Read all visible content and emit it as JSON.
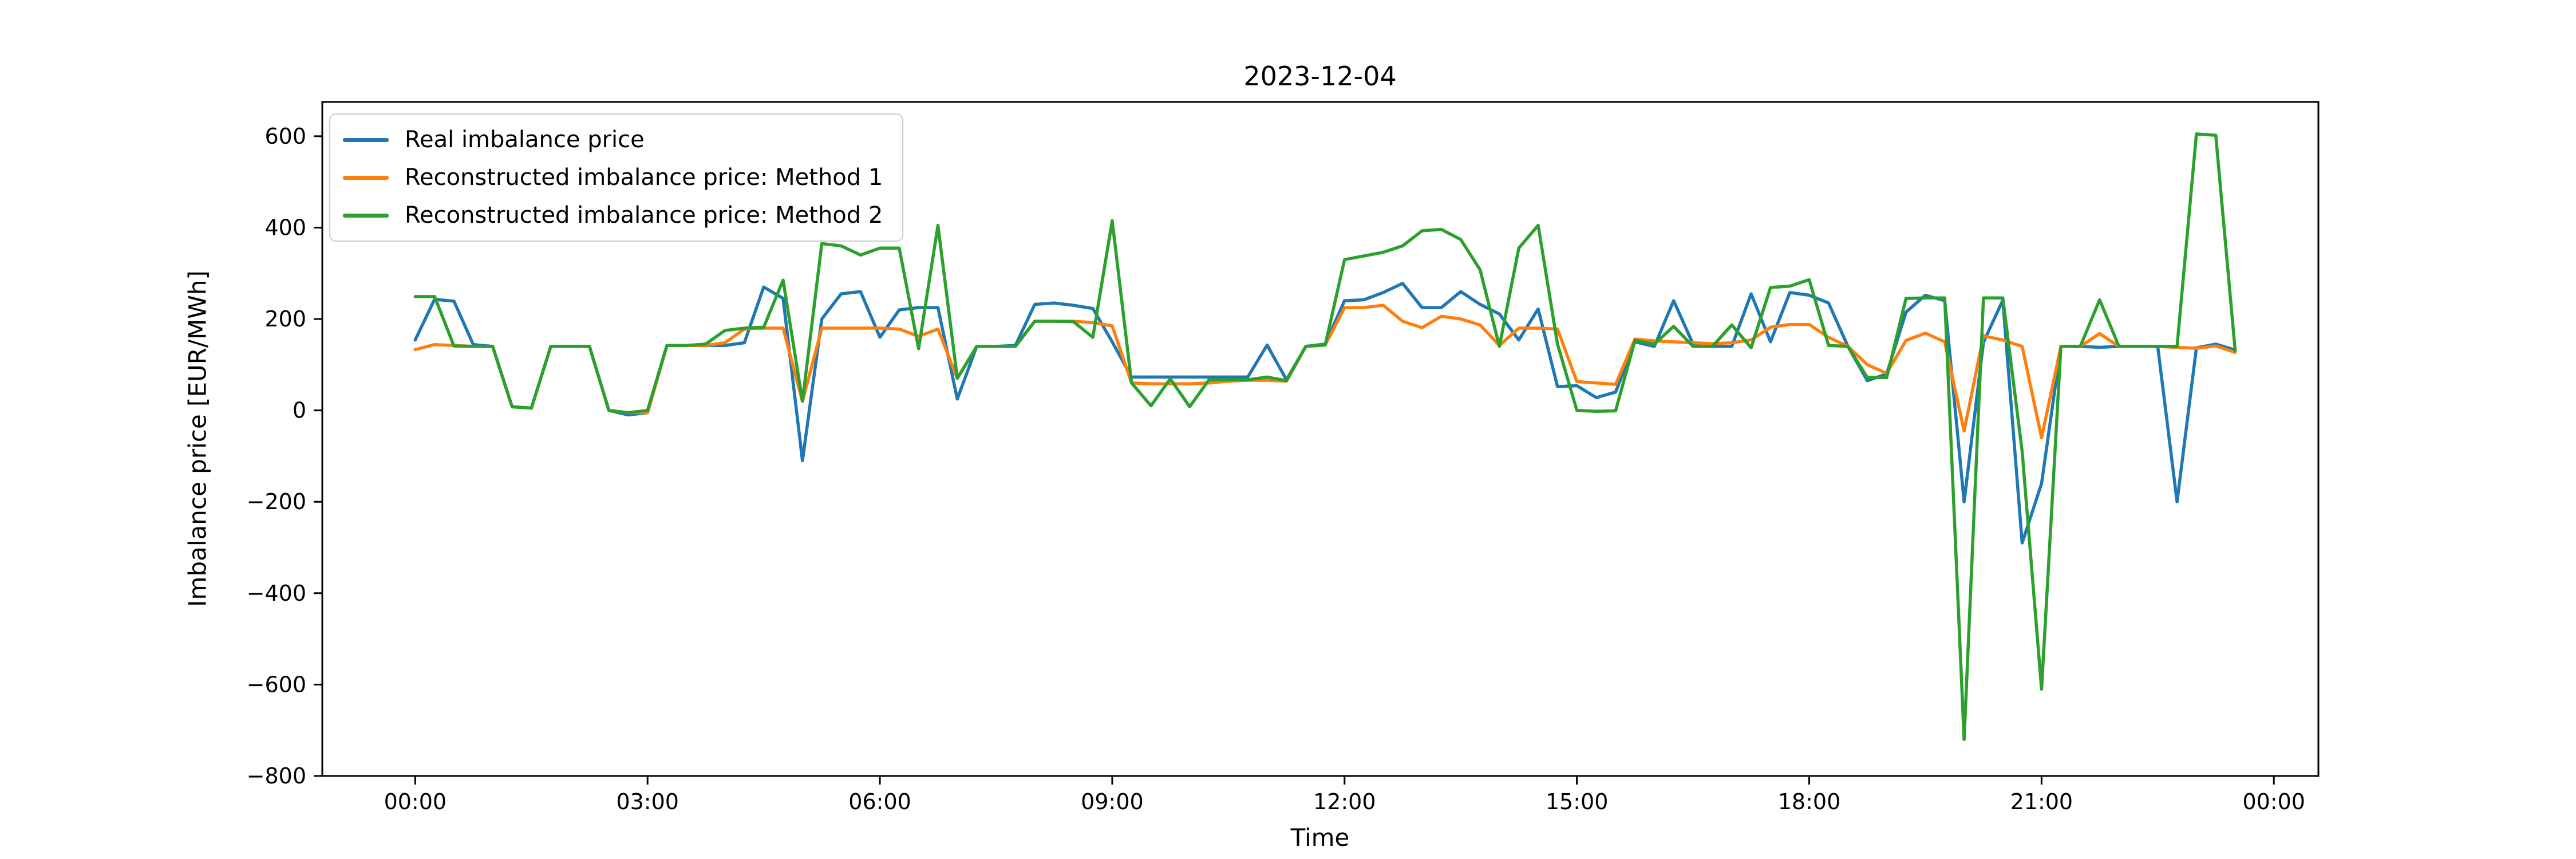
{
  "figure": {
    "title": "2023-12-04",
    "xlabel": "Time",
    "ylabel": "Imbalance price [EUR/MWh]",
    "background_color": "#ffffff",
    "spine_color": "#000000"
  },
  "legend": {
    "position": "upper left",
    "items": [
      {
        "label": "Real imbalance price",
        "color": "#1f77b4"
      },
      {
        "label": "Reconstructed imbalance price: Method 1",
        "color": "#ff7f0e"
      },
      {
        "label": "Reconstructed imbalance price: Method 2",
        "color": "#2ca02c"
      }
    ]
  },
  "chart_data": {
    "type": "line",
    "title": "2023-12-04",
    "xlabel": "Time",
    "ylabel": "Imbalance price [EUR/MWh]",
    "grid": false,
    "legend_position": "upper left",
    "x_start": "00:00",
    "x_step_minutes": 15,
    "n_points": 95,
    "x_tick_labels": [
      "00:00",
      "03:00",
      "06:00",
      "09:00",
      "12:00",
      "15:00",
      "18:00",
      "21:00",
      "00:00"
    ],
    "x_tick_sample_indices": [
      0,
      12,
      24,
      36,
      48,
      60,
      72,
      84,
      96
    ],
    "y_ticks": [
      600,
      400,
      200,
      0,
      -200,
      -400,
      -600,
      -800
    ],
    "ylim": [
      -800,
      675
    ],
    "xlim_samples": [
      -4.8,
      98.3
    ],
    "series": [
      {
        "name": "Real imbalance price",
        "color": "#1f77b4",
        "values": [
          154,
          243,
          239,
          144,
          140,
          8,
          5,
          140,
          140,
          140,
          0,
          -10,
          -5,
          142,
          142,
          142,
          142,
          148,
          270,
          245,
          -110,
          200,
          255,
          260,
          160,
          220,
          225,
          225,
          25,
          140,
          140,
          142,
          232,
          235,
          230,
          223,
          150,
          73,
          73,
          73,
          73,
          73,
          73,
          73,
          143,
          67,
          140,
          145,
          240,
          242,
          258,
          278,
          225,
          225,
          260,
          232,
          211,
          154,
          222,
          52,
          54,
          28,
          40,
          150,
          140,
          240,
          145,
          140,
          140,
          255,
          150,
          258,
          252,
          235,
          140,
          65,
          80,
          215,
          252,
          240,
          -200,
          149,
          241,
          -290,
          -160,
          140,
          140,
          138,
          140,
          140,
          140,
          -200,
          137,
          145,
          132
        ]
      },
      {
        "name": "Reconstructed imbalance price: Method 1",
        "color": "#ff7f0e",
        "values": [
          133,
          144,
          142,
          140,
          140,
          8,
          5,
          140,
          140,
          140,
          0,
          -5,
          -5,
          142,
          142,
          142,
          148,
          178,
          180,
          180,
          20,
          180,
          180,
          180,
          180,
          178,
          162,
          178,
          70,
          140,
          140,
          140,
          195,
          195,
          195,
          192,
          185,
          60,
          58,
          58,
          58,
          60,
          64,
          66,
          66,
          64,
          140,
          143,
          225,
          225,
          230,
          195,
          181,
          206,
          200,
          187,
          142,
          180,
          180,
          178,
          63,
          60,
          57,
          156,
          152,
          150,
          148,
          146,
          148,
          154,
          182,
          188,
          188,
          160,
          140,
          100,
          81,
          153,
          169,
          150,
          -45,
          163,
          154,
          140,
          -60,
          140,
          140,
          168,
          140,
          140,
          140,
          138,
          136,
          141,
          127
        ]
      },
      {
        "name": "Reconstructed imbalance price: Method 2",
        "color": "#2ca02c",
        "values": [
          249,
          249,
          141,
          140,
          140,
          8,
          5,
          140,
          140,
          140,
          0,
          -5,
          0,
          142,
          142,
          145,
          175,
          180,
          182,
          285,
          20,
          365,
          360,
          340,
          355,
          355,
          135,
          405,
          70,
          140,
          140,
          140,
          195,
          195,
          194,
          160,
          415,
          60,
          10,
          69,
          8,
          67,
          67,
          67,
          73,
          65,
          140,
          143,
          330,
          338,
          346,
          360,
          393,
          396,
          374,
          308,
          140,
          355,
          405,
          145,
          0,
          -2,
          -1,
          153,
          145,
          184,
          140,
          140,
          187,
          137,
          269,
          272,
          286,
          142,
          140,
          72,
          72,
          245,
          246,
          246,
          -720,
          246,
          246,
          -90,
          -610,
          140,
          140,
          242,
          140,
          140,
          140,
          140,
          605,
          602,
          131
        ]
      }
    ]
  },
  "axes_text": {
    "y_tick_labels": [
      "600",
      "400",
      "200",
      "0",
      "−200",
      "−400",
      "−600",
      "−800"
    ]
  }
}
